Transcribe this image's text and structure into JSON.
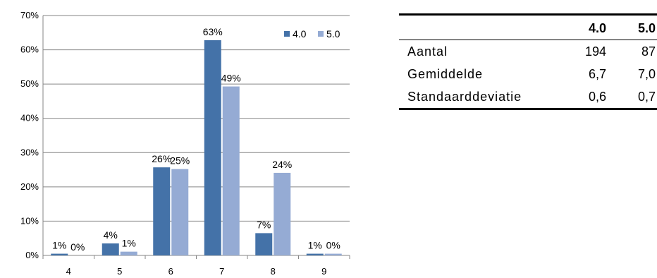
{
  "chart_data": {
    "type": "bar",
    "categories": [
      "4",
      "5",
      "6",
      "7",
      "8",
      "9"
    ],
    "series": [
      {
        "name": "4.0",
        "values": [
          1,
          4,
          26,
          63,
          7,
          1
        ],
        "labels": [
          "1%",
          "4%",
          "26%",
          "63%",
          "7%",
          "1%"
        ],
        "plot_values": [
          0.5,
          3.5,
          25.7,
          62.8,
          6.5,
          0.5
        ],
        "color": "#4472A8"
      },
      {
        "name": "5.0",
        "values": [
          0,
          1,
          25,
          49,
          24,
          0
        ],
        "labels": [
          "0%",
          "1%",
          "25%",
          "49%",
          "24%",
          "0%"
        ],
        "plot_values": [
          0,
          1.1,
          25.2,
          49.3,
          24.1,
          0.5
        ],
        "color": "#95ABD4"
      }
    ],
    "ylim": [
      0,
      70
    ],
    "yticks": [
      "0%",
      "10%",
      "20%",
      "30%",
      "40%",
      "50%",
      "60%",
      "70%"
    ],
    "ytick_values": [
      0,
      10,
      20,
      30,
      40,
      50,
      60,
      70
    ],
    "grid": true,
    "legend_position": "top-right",
    "title": "",
    "xlabel": "",
    "ylabel": ""
  },
  "table": {
    "columns": [
      "",
      "4.0",
      "5.0"
    ],
    "rows": [
      {
        "label": "Aantal",
        "v1": "194",
        "v2": "87"
      },
      {
        "label": "Gemiddelde",
        "v1": "6,7",
        "v2": "7,0"
      },
      {
        "label": "Standaarddeviatie",
        "v1": "0,6",
        "v2": "0,7"
      }
    ]
  }
}
